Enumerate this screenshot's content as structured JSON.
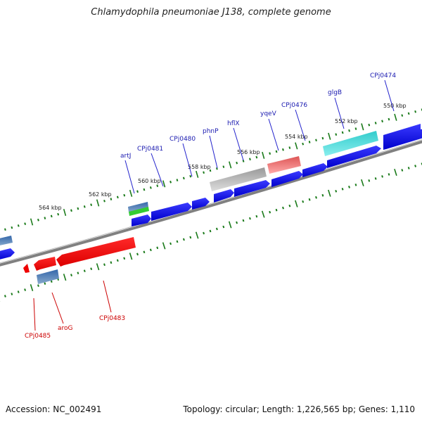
{
  "title": "Chlamydophila pneumoniae J138, complete genome",
  "accession": "Accession: NC_002491",
  "topology": "Topology: circular; Length: 1,226,565 bp; Genes: 1,110",
  "colors": {
    "backbone": "#808080",
    "tick": "#1a7a1a",
    "forward_gene": "#0000ee",
    "reverse_gene": "#ee0000",
    "top_label": "#1a1ab0",
    "bottom_label": "#cc0000",
    "teal": "#22cccc",
    "salmon": "#ee7777",
    "gray_feature": "#aaaaaa",
    "steel": "#4477aa",
    "lime": "#33cc33"
  },
  "scale_labels": [
    "550 kbp",
    "552 kbp",
    "554 kbp",
    "556 kbp",
    "558 kbp",
    "560 kbp",
    "562 kbp",
    "564 kbp"
  ],
  "top_gene_labels": [
    "CPj0474",
    "glgB",
    "CPj0476",
    "yqeV",
    "hflX",
    "phnP",
    "CPj0480",
    "CPj0481",
    "artJ"
  ],
  "bottom_gene_labels": [
    "CPj0483",
    "aroG",
    "CPj0485"
  ]
}
